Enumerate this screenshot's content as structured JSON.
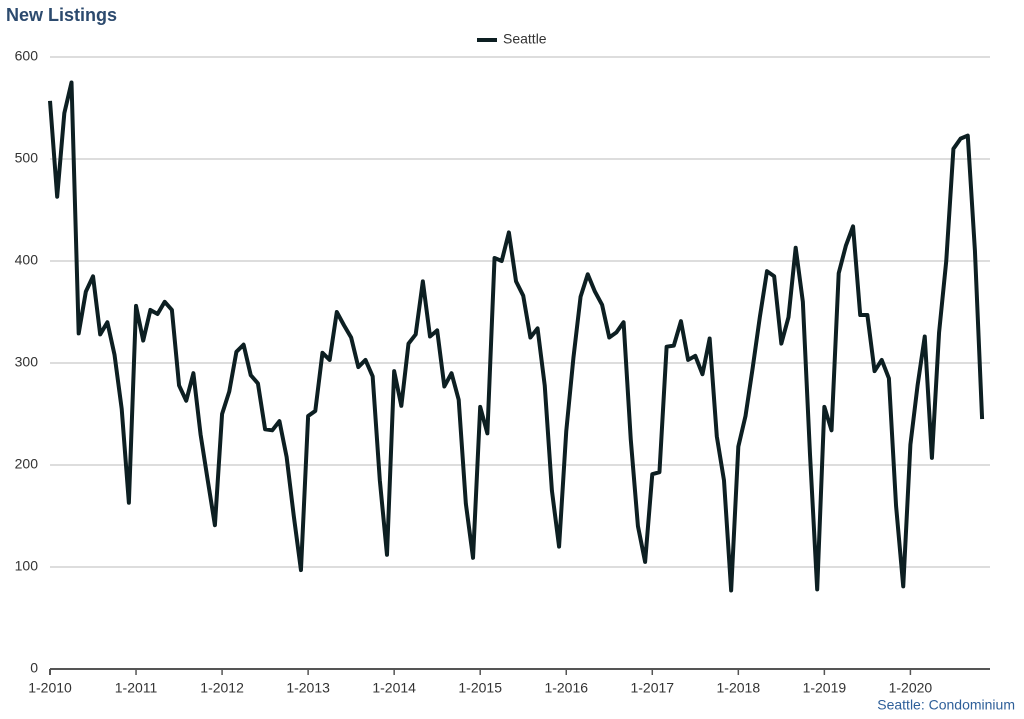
{
  "chart_data": {
    "type": "line",
    "title": "New Listings",
    "footer": "Seattle: Condominium",
    "categories": [
      "1-2010",
      null,
      null,
      null,
      null,
      null,
      null,
      null,
      null,
      null,
      null,
      null,
      "1-2011",
      null,
      null,
      null,
      null,
      null,
      null,
      null,
      null,
      null,
      null,
      null,
      "1-2012",
      null,
      null,
      null,
      null,
      null,
      null,
      null,
      null,
      null,
      null,
      null,
      "1-2013",
      null,
      null,
      null,
      null,
      null,
      null,
      null,
      null,
      null,
      null,
      null,
      "1-2014",
      null,
      null,
      null,
      null,
      null,
      null,
      null,
      null,
      null,
      null,
      null,
      "1-2015",
      null,
      null,
      null,
      null,
      null,
      null,
      null,
      null,
      null,
      null,
      null,
      "1-2016",
      null,
      null,
      null,
      null,
      null,
      null,
      null,
      null,
      null,
      null,
      null,
      "1-2017",
      null,
      null,
      null,
      null,
      null,
      null,
      null,
      null,
      null,
      null,
      null,
      "1-2018",
      null,
      null,
      null,
      null,
      null,
      null,
      null,
      null,
      null,
      null,
      null,
      "1-2019",
      null,
      null,
      null,
      null,
      null,
      null,
      null,
      null,
      null,
      null,
      null,
      "1-2020",
      null,
      null,
      null,
      null,
      null,
      null,
      null,
      null,
      null,
      null
    ],
    "series": [
      {
        "name": "Seattle",
        "color": "#0d1f22",
        "values": [
          557,
          463,
          545,
          575,
          329,
          370,
          385,
          328,
          340,
          308,
          255,
          163,
          356,
          322,
          352,
          348,
          360,
          352,
          278,
          263,
          290,
          230,
          185,
          141,
          250,
          272,
          311,
          318,
          288,
          280,
          235,
          234,
          243,
          208,
          150,
          97,
          248,
          253,
          310,
          303,
          350,
          337,
          325,
          296,
          303,
          287,
          185,
          112,
          292,
          258,
          319,
          328,
          380,
          326,
          332,
          277,
          290,
          264,
          162,
          109,
          257,
          231,
          403,
          400,
          428,
          380,
          366,
          325,
          334,
          278,
          175,
          120,
          233,
          305,
          365,
          387,
          370,
          357,
          325,
          330,
          340,
          225,
          140,
          105,
          191,
          193,
          316,
          317,
          341,
          303,
          307,
          289,
          324,
          228,
          185,
          77,
          218,
          248,
          295,
          345,
          390,
          385,
          319,
          345,
          413,
          360,
          210,
          78,
          257,
          234,
          388,
          415,
          434,
          347,
          347,
          292,
          303,
          285,
          160,
          81,
          220,
          278,
          326,
          207,
          330,
          400,
          510,
          520,
          523,
          410,
          245
        ]
      }
    ],
    "ylim": [
      0,
      600
    ],
    "yticks": [
      0,
      100,
      200,
      300,
      400,
      500,
      600
    ],
    "grid": true,
    "legend": "top"
  }
}
